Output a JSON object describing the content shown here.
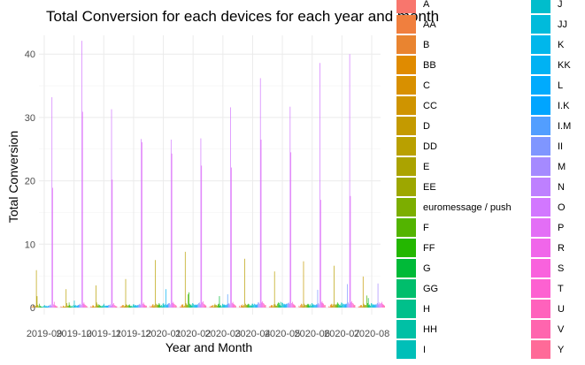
{
  "chart_data": {
    "type": "bar",
    "title": "Total Conversion for each devices for each year and month",
    "xlabel": "Year and Month",
    "ylabel": "Total Conversion",
    "ylim": [
      0,
      44
    ],
    "yticks": [
      0,
      10,
      20,
      30,
      40
    ],
    "grid": true,
    "legend_position": "right",
    "categories": [
      "2019-09",
      "2019-10",
      "2019-11",
      "2019-12",
      "2020-01",
      "2020-02",
      "2020-03",
      "2020-04",
      "2020-05",
      "2020-06",
      "2020-07",
      "2020-08"
    ],
    "series": [
      {
        "name": "A",
        "color": "#F8766D",
        "values": [
          0.2,
          0.2,
          0.2,
          0.2,
          0.3,
          0.2,
          0.2,
          0.3,
          0.2,
          0.3,
          0.2,
          0.2
        ]
      },
      {
        "name": "AA",
        "color": "#F07F3E",
        "values": [
          0.1,
          0.1,
          0.1,
          0.1,
          0.1,
          0.1,
          0.1,
          0.1,
          0.1,
          0.1,
          0.1,
          0.1
        ]
      },
      {
        "name": "B",
        "color": "#E98430",
        "values": [
          0.2,
          0.1,
          0.2,
          0.3,
          0.3,
          0.4,
          0.3,
          0.4,
          0.3,
          0.4,
          0.4,
          0.3
        ]
      },
      {
        "name": "BB",
        "color": "#E08B00",
        "values": [
          0.5,
          0.3,
          0.4,
          0.4,
          0.5,
          0.5,
          0.3,
          0.3,
          0.4,
          0.6,
          0.5,
          0.4
        ]
      },
      {
        "name": "C",
        "color": "#D89000",
        "values": [
          0.3,
          0.2,
          0.3,
          0.4,
          0.5,
          0.5,
          0.4,
          0.5,
          0.4,
          0.5,
          0.6,
          0.4
        ]
      },
      {
        "name": "CC",
        "color": "#CF9400",
        "values": [
          0.1,
          0.1,
          0.1,
          0.2,
          0.2,
          0.2,
          0.1,
          0.2,
          0.2,
          0.2,
          0.3,
          0.2
        ]
      },
      {
        "name": "D",
        "color": "#C49A00",
        "values": [
          0.3,
          0.2,
          0.2,
          0.3,
          0.4,
          0.3,
          0.4,
          0.4,
          0.5,
          7.3,
          0.5,
          4.9
        ]
      },
      {
        "name": "DD",
        "color": "#B9A000",
        "values": [
          5.9,
          2.9,
          3.5,
          4.5,
          7.5,
          8.8,
          0.6,
          7.7,
          5.7,
          0.6,
          6.6,
          0.6
        ]
      },
      {
        "name": "E",
        "color": "#ABA300",
        "values": [
          1.8,
          0.7,
          0.8,
          0.5,
          0.6,
          0.7,
          0.4,
          0.6,
          0.5,
          0.4,
          0.5,
          0.4
        ]
      },
      {
        "name": "EE",
        "color": "#9DA700",
        "values": [
          0.4,
          0.3,
          0.5,
          0.4,
          0.4,
          0.5,
          0.4,
          0.4,
          0.3,
          0.4,
          0.5,
          0.4
        ]
      },
      {
        "name": "euromessage / push",
        "color": "#7CAE00",
        "values": [
          0.2,
          0.3,
          0.3,
          0.3,
          0.5,
          0.4,
          0.3,
          0.4,
          0.3,
          0.4,
          0.4,
          0.4
        ]
      },
      {
        "name": "F",
        "color": "#53B400",
        "values": [
          0.6,
          0.8,
          0.5,
          0.4,
          0.4,
          2.1,
          0.5,
          0.5,
          0.6,
          0.5,
          0.6,
          1.9
        ]
      },
      {
        "name": "FF",
        "color": "#24B700",
        "values": [
          0.3,
          0.4,
          0.4,
          0.5,
          0.7,
          2.4,
          0.6,
          0.6,
          0.8,
          0.6,
          0.8,
          0.7
        ]
      },
      {
        "name": "G",
        "color": "#00BA38",
        "values": [
          0.2,
          0.2,
          0.3,
          0.3,
          0.5,
          0.6,
          1.8,
          0.5,
          0.7,
          0.5,
          0.6,
          1.5
        ]
      },
      {
        "name": "GG",
        "color": "#00BE6C",
        "values": [
          0.1,
          0.2,
          0.2,
          0.2,
          0.3,
          0.4,
          0.3,
          0.3,
          0.4,
          0.3,
          0.4,
          0.4
        ]
      },
      {
        "name": "H",
        "color": "#00C08B",
        "values": [
          0.2,
          0.3,
          0.3,
          0.3,
          0.4,
          0.5,
          0.4,
          0.4,
          0.9,
          0.5,
          0.5,
          0.5
        ]
      },
      {
        "name": "HH",
        "color": "#00C0A5",
        "values": [
          0.1,
          0.1,
          0.2,
          0.2,
          0.2,
          0.3,
          0.2,
          0.3,
          0.3,
          0.3,
          0.3,
          0.3
        ]
      },
      {
        "name": "I",
        "color": "#00BFB8",
        "values": [
          0.3,
          0.4,
          0.4,
          0.5,
          0.6,
          0.7,
          0.6,
          0.6,
          0.8,
          0.7,
          0.8,
          0.7
        ]
      },
      {
        "name": "J",
        "color": "#00BDCC",
        "values": [
          0.4,
          1.1,
          0.6,
          0.5,
          0.7,
          0.6,
          0.5,
          0.6,
          0.7,
          0.6,
          0.7,
          0.6
        ]
      },
      {
        "name": "JJ",
        "color": "#00BBDB",
        "values": [
          0.2,
          0.3,
          0.3,
          0.3,
          0.4,
          0.4,
          0.4,
          0.4,
          0.5,
          0.4,
          0.5,
          0.4
        ]
      },
      {
        "name": "K",
        "color": "#00B7EB",
        "values": [
          0.3,
          0.4,
          0.3,
          0.4,
          0.5,
          0.5,
          0.5,
          0.6,
          0.6,
          0.5,
          0.6,
          0.5
        ]
      },
      {
        "name": "KK",
        "color": "#00B2F3",
        "values": [
          0.2,
          0.3,
          0.3,
          0.4,
          2.9,
          0.4,
          0.4,
          0.5,
          0.5,
          0.4,
          0.5,
          0.5
        ]
      },
      {
        "name": "L",
        "color": "#00ABFD",
        "values": [
          0.2,
          0.3,
          0.3,
          0.3,
          0.4,
          0.4,
          0.4,
          0.4,
          0.5,
          0.4,
          0.5,
          0.4
        ]
      },
      {
        "name": "I.K",
        "color": "#00A5FF",
        "values": [
          0.3,
          0.4,
          0.3,
          0.4,
          0.5,
          0.5,
          0.5,
          0.5,
          0.6,
          0.5,
          0.6,
          0.5
        ]
      },
      {
        "name": "I.M",
        "color": "#529EFF",
        "values": [
          0.3,
          0.4,
          0.4,
          0.4,
          0.6,
          0.5,
          2.1,
          0.5,
          0.6,
          0.5,
          0.6,
          0.5
        ]
      },
      {
        "name": "II",
        "color": "#7F96FF",
        "values": [
          0.4,
          0.5,
          0.4,
          0.5,
          0.7,
          0.7,
          0.6,
          0.8,
          0.7,
          2.8,
          3.7,
          0.7
        ]
      },
      {
        "name": "M",
        "color": "#A58AFF",
        "values": [
          0.5,
          0.6,
          0.5,
          0.6,
          0.7,
          0.8,
          0.7,
          0.8,
          0.8,
          0.7,
          0.8,
          3.8
        ]
      },
      {
        "name": "N",
        "color": "#BE80FF",
        "values": [
          0.3,
          0.4,
          0.3,
          0.4,
          0.5,
          0.5,
          0.5,
          0.6,
          0.6,
          0.5,
          0.6,
          0.5
        ]
      },
      {
        "name": "O",
        "color": "#D277FF",
        "values": [
          33.2,
          42.1,
          31.3,
          26.6,
          26.5,
          26.7,
          31.6,
          36.2,
          31.7,
          38.6,
          40.0,
          0.8
        ]
      },
      {
        "name": "P",
        "color": "#E36EF6",
        "values": [
          18.9,
          30.9,
          20.2,
          26.1,
          24.3,
          22.4,
          22.1,
          26.5,
          24.5,
          17.0,
          17.6,
          0.6
        ]
      },
      {
        "name": "R",
        "color": "#F066EA",
        "values": [
          0.5,
          0.6,
          0.5,
          0.6,
          0.7,
          0.8,
          0.7,
          0.8,
          0.7,
          0.8,
          0.8,
          0.7
        ]
      },
      {
        "name": "S",
        "color": "#F962DD",
        "values": [
          0.9,
          0.8,
          0.7,
          0.8,
          0.9,
          1.0,
          0.9,
          1.0,
          0.9,
          1.0,
          1.0,
          0.9
        ]
      },
      {
        "name": "T",
        "color": "#FD61D1",
        "values": [
          0.4,
          0.5,
          0.4,
          0.5,
          0.6,
          0.6,
          0.6,
          0.7,
          0.6,
          0.7,
          0.7,
          0.6
        ]
      },
      {
        "name": "U",
        "color": "#FF62BC",
        "values": [
          0.3,
          0.4,
          0.3,
          0.4,
          0.5,
          0.5,
          0.5,
          0.6,
          0.5,
          0.6,
          0.6,
          0.5
        ]
      },
      {
        "name": "V",
        "color": "#FF65AE",
        "values": [
          0.2,
          0.3,
          0.2,
          0.3,
          0.4,
          0.4,
          0.4,
          0.4,
          0.4,
          0.4,
          0.4,
          0.4
        ]
      },
      {
        "name": "Y",
        "color": "#FF6A98",
        "values": [
          0.2,
          0.2,
          0.2,
          0.3,
          0.3,
          0.3,
          0.3,
          0.4,
          0.3,
          0.4,
          0.4,
          0.3
        ]
      }
    ]
  }
}
